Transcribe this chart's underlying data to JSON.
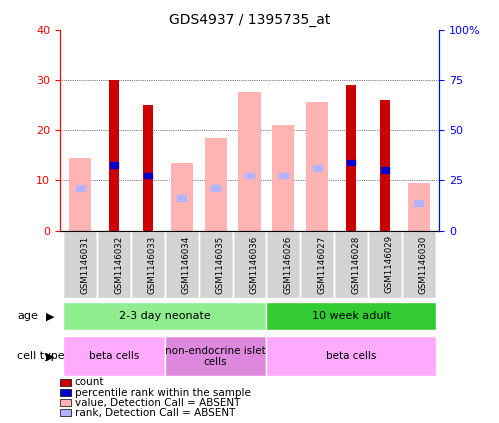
{
  "title": "GDS4937 / 1395735_at",
  "samples": [
    "GSM1146031",
    "GSM1146032",
    "GSM1146033",
    "GSM1146034",
    "GSM1146035",
    "GSM1146036",
    "GSM1146026",
    "GSM1146027",
    "GSM1146028",
    "GSM1146029",
    "GSM1146030"
  ],
  "count_values": [
    0,
    30,
    25,
    0,
    0,
    0,
    0,
    0,
    29,
    26,
    0
  ],
  "rank_values": [
    0,
    13,
    11,
    0,
    0,
    0,
    0,
    0,
    13.5,
    12,
    0
  ],
  "absent_value_values": [
    14.5,
    0,
    0,
    13.5,
    18.5,
    27.5,
    21,
    25.5,
    0,
    0,
    9.5
  ],
  "absent_rank_values": [
    8.5,
    0,
    0,
    6.5,
    8.5,
    11,
    11,
    12.5,
    0,
    0,
    5.5
  ],
  "ylim_left": [
    0,
    40
  ],
  "ylim_right": [
    0,
    100
  ],
  "yticks_left": [
    0,
    10,
    20,
    30,
    40
  ],
  "yticks_right": [
    0,
    25,
    50,
    75,
    100
  ],
  "ytick_labels_right": [
    "0",
    "25",
    "50",
    "75",
    "100%"
  ],
  "count_color": "#cc0000",
  "rank_color": "#0000cc",
  "absent_value_color": "#ffb3b3",
  "absent_rank_color": "#b3b3ff",
  "age_groups": [
    {
      "label": "2-3 day neonate",
      "start": 0,
      "end": 6,
      "color": "#90ee90"
    },
    {
      "label": "10 week adult",
      "start": 6,
      "end": 11,
      "color": "#33cc33"
    }
  ],
  "cell_type_groups": [
    {
      "label": "beta cells",
      "start": 0,
      "end": 3,
      "color": "#ffaaff"
    },
    {
      "label": "non-endocrine islet\ncells",
      "start": 3,
      "end": 6,
      "color": "#dd88dd"
    },
    {
      "label": "beta cells",
      "start": 6,
      "end": 11,
      "color": "#ffaaff"
    }
  ],
  "legend_items": [
    {
      "color": "#cc0000",
      "label": "count"
    },
    {
      "color": "#0000cc",
      "label": "percentile rank within the sample"
    },
    {
      "color": "#ffb3b3",
      "label": "value, Detection Call = ABSENT"
    },
    {
      "color": "#b3b3ff",
      "label": "rank, Detection Call = ABSENT"
    }
  ]
}
